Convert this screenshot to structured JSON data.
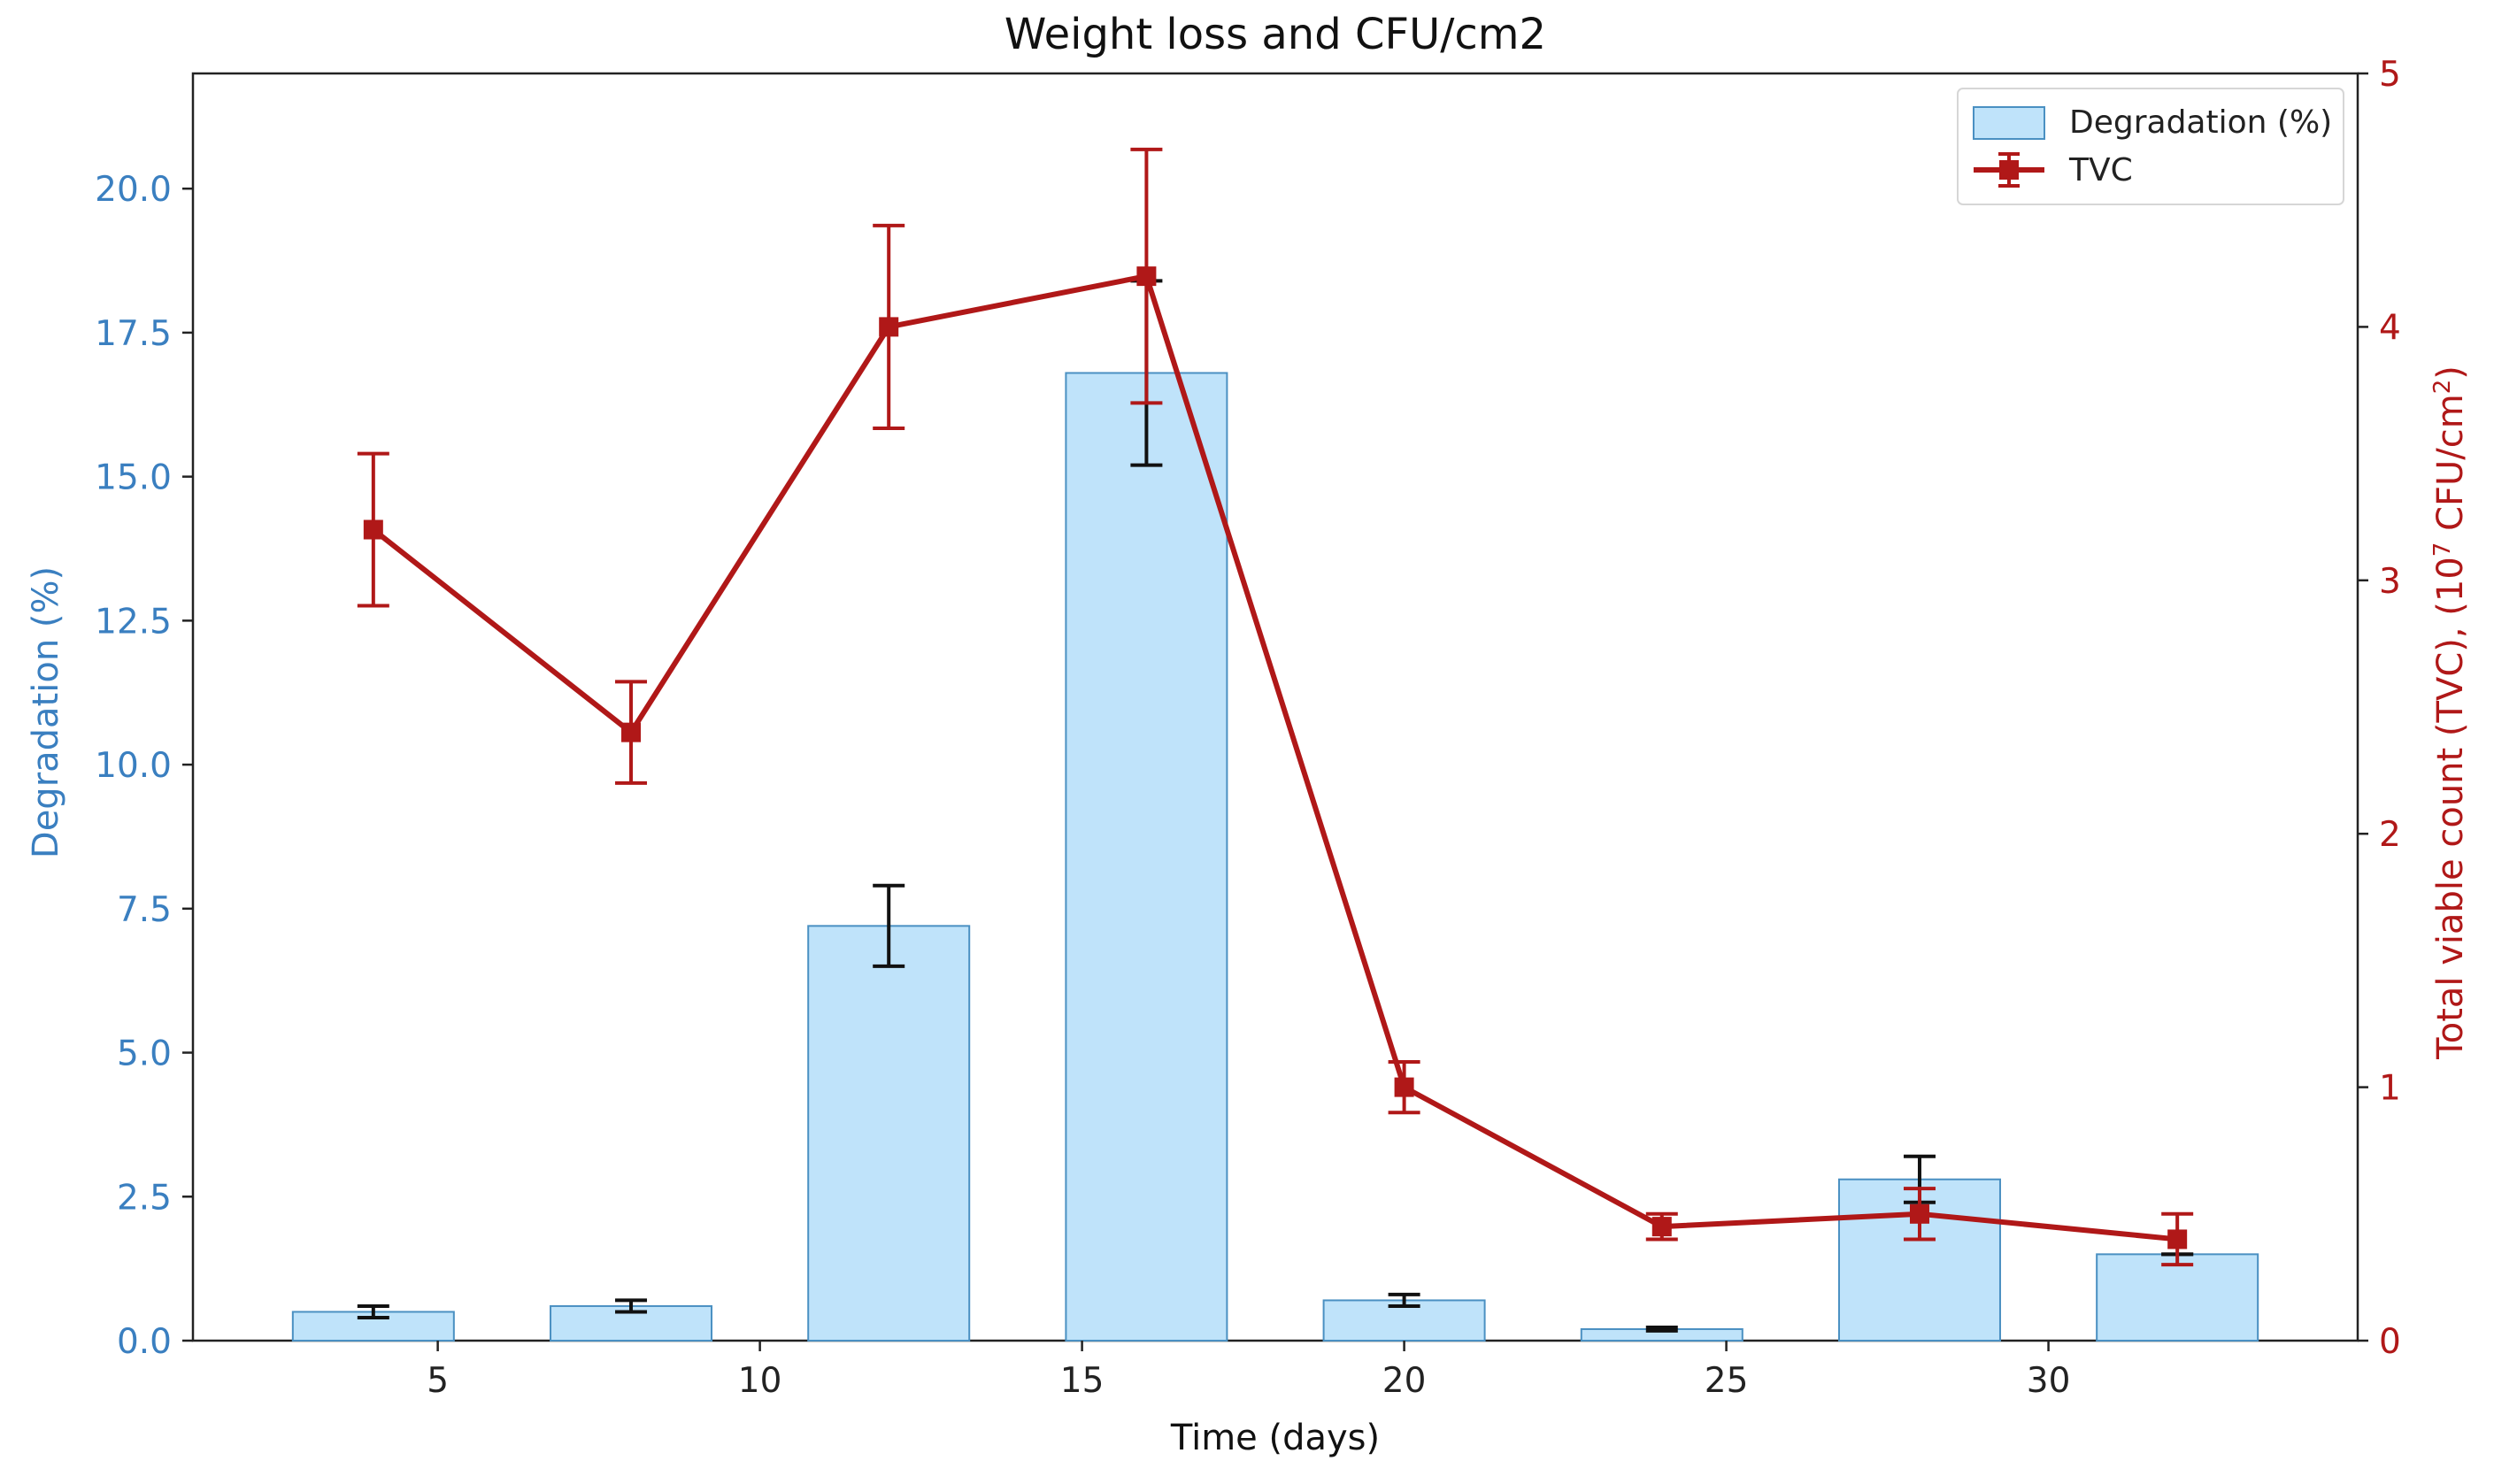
{
  "chart_data": {
    "type": "bar+line",
    "title": "Weight loss and CFU/cm2",
    "xlabel": "Time (days)",
    "ylabel_left": "Degradation (%)",
    "ylabel_right": "Total viable count (TVC), (10^7 CFU/cm^2)",
    "ylabel_right_parts": {
      "main": "Total viable count (TVC), (10",
      "sup1": "7",
      "mid": " CFU/cm",
      "sup2": "2",
      "end": ")"
    },
    "xlim": [
      1.2,
      34.8
    ],
    "ylim_left": [
      0,
      22
    ],
    "ylim_right": [
      0,
      5
    ],
    "x_ticks": [
      5,
      10,
      15,
      20,
      25,
      30
    ],
    "y_left_ticks": [
      "0.0",
      "2.5",
      "5.0",
      "7.5",
      "10.0",
      "12.5",
      "15.0",
      "17.5",
      "20.0"
    ],
    "y_right_ticks": [
      "0",
      "1",
      "2",
      "3",
      "4",
      "5"
    ],
    "grid": false,
    "legend_position": "top-right",
    "colors": {
      "bar_fill": "#bfe3fa",
      "bar_edge": "#4a90c2",
      "line": "#b01818",
      "left_axis": "#3a7fc0",
      "right_axis": "#b01818",
      "bar_error": "#111111"
    },
    "series": [
      {
        "name": "Degradation (%)",
        "kind": "bar",
        "axis": "left",
        "x": [
          4,
          8,
          12,
          16,
          20,
          24,
          28,
          32
        ],
        "values": [
          0.5,
          0.6,
          7.2,
          16.8,
          0.7,
          0.2,
          2.8,
          1.5
        ],
        "errors": [
          0.1,
          0.1,
          0.7,
          1.6,
          0.1,
          0.03,
          0.4,
          0.0
        ]
      },
      {
        "name": "TVC",
        "kind": "line",
        "axis": "right",
        "x": [
          4,
          8,
          12,
          16,
          20,
          24,
          28,
          32
        ],
        "values": [
          3.2,
          2.4,
          4.0,
          4.2,
          1.0,
          0.45,
          0.5,
          0.4
        ],
        "errors": [
          0.3,
          0.2,
          0.4,
          0.5,
          0.1,
          0.05,
          0.1,
          0.1
        ]
      }
    ]
  }
}
